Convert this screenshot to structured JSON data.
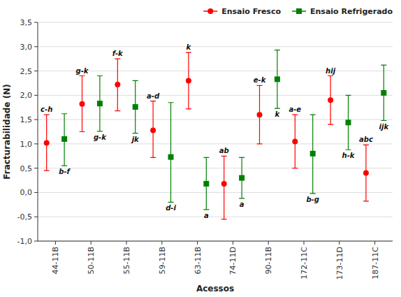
{
  "chart_data": {
    "type": "errorbar",
    "xlabel": "Acessos",
    "ylabel": "Fracturabilidade (N)",
    "categories": [
      "44-11B",
      "50-11B",
      "55-11B",
      "59-11B",
      "63-11B",
      "74-11D",
      "90-11B",
      "172-11C",
      "173-11D",
      "187-11C"
    ],
    "series": [
      {
        "name": "Ensaio Fresco",
        "color": "#ff0000",
        "marker": "circle",
        "values": [
          1.02,
          1.82,
          2.22,
          1.28,
          2.3,
          0.18,
          1.6,
          1.05,
          1.9,
          0.4
        ],
        "upper": [
          1.6,
          2.4,
          2.75,
          1.88,
          2.88,
          0.75,
          2.2,
          1.6,
          2.4,
          0.98
        ],
        "lower": [
          0.45,
          1.25,
          1.68,
          0.72,
          1.72,
          -0.55,
          1.0,
          0.5,
          1.4,
          -0.18
        ],
        "labels": [
          "c-h",
          "g-k",
          "f-k",
          "a-d",
          "k",
          "ab",
          "e-k",
          "a-e",
          "hij",
          "abc"
        ]
      },
      {
        "name": "Ensaio Refrigerado",
        "color": "#008000",
        "marker": "square",
        "values": [
          1.1,
          1.83,
          1.76,
          0.73,
          0.18,
          0.3,
          2.33,
          0.8,
          1.44,
          2.05
        ],
        "upper": [
          1.62,
          2.4,
          2.3,
          1.85,
          0.72,
          0.72,
          2.93,
          1.6,
          2.0,
          2.62
        ],
        "lower": [
          0.55,
          1.26,
          1.22,
          -0.2,
          -0.35,
          -0.12,
          1.73,
          -0.02,
          0.88,
          1.48
        ],
        "labels": [
          "b-f",
          "g-k",
          "jk",
          "d-i",
          "a",
          "a",
          "k",
          "b-g",
          "h-k",
          "ijk"
        ]
      }
    ],
    "ylim": [
      -1.0,
      3.5
    ],
    "yticks": [
      {
        "value": -1.0,
        "label": "-1,0"
      },
      {
        "value": -0.5,
        "label": "-0,5"
      },
      {
        "value": 0.0,
        "label": "0,0"
      },
      {
        "value": 0.5,
        "label": "0,5"
      },
      {
        "value": 1.0,
        "label": "1,0"
      },
      {
        "value": 1.5,
        "label": "1,5"
      },
      {
        "value": 2.0,
        "label": "2,0"
      },
      {
        "value": 2.5,
        "label": "2,5"
      },
      {
        "value": 3.0,
        "label": "3,0"
      },
      {
        "value": 3.5,
        "label": "3,5"
      }
    ],
    "grid": true,
    "legend": "upper right"
  }
}
